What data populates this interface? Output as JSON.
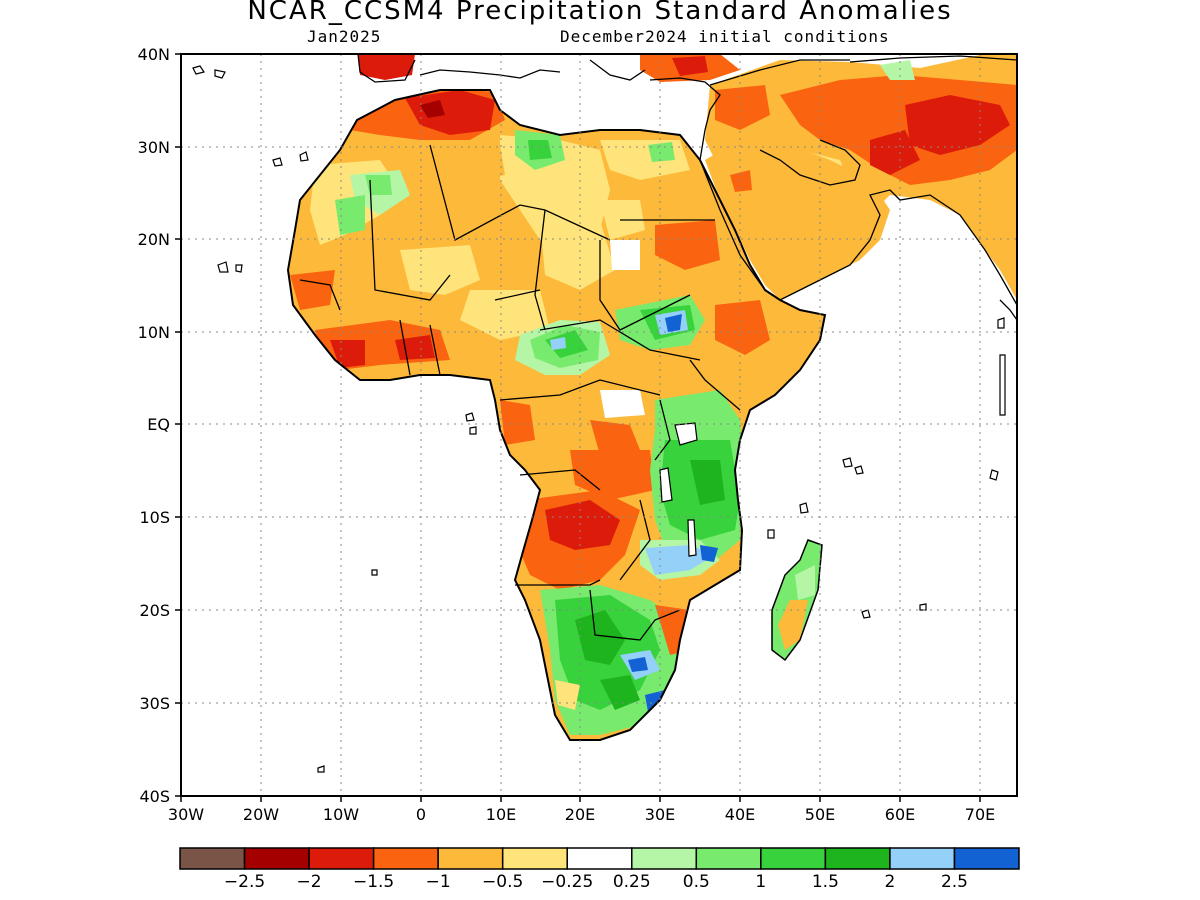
{
  "title": "NCAR_CCSM4 Precipitation Standard Anomalies",
  "subtitle_left": "Jan2025",
  "subtitle_right": "December2024 initial conditions",
  "lat_labels": [
    "40N",
    "30N",
    "20N",
    "10N",
    "EQ",
    "10S",
    "20S",
    "30S",
    "40S"
  ],
  "lon_labels": [
    "30W",
    "20W",
    "10W",
    "0",
    "10E",
    "20E",
    "30E",
    "40E",
    "50E",
    "60E",
    "70E"
  ],
  "colorbar": {
    "colors": [
      "#7a5446",
      "#a50000",
      "#dc1b0b",
      "#fa6410",
      "#fdb93a",
      "#fee47a",
      "#ffffff",
      "#b4f6a6",
      "#78ea6e",
      "#37d23c",
      "#1eb41e",
      "#94d0f8",
      "#1262d4"
    ],
    "labels": [
      "−2.5",
      "−2",
      "−1.5",
      "−1",
      "−0.5",
      "−0.25",
      "0.25",
      "0.5",
      "1",
      "1.5",
      "2",
      "2.5"
    ]
  }
}
